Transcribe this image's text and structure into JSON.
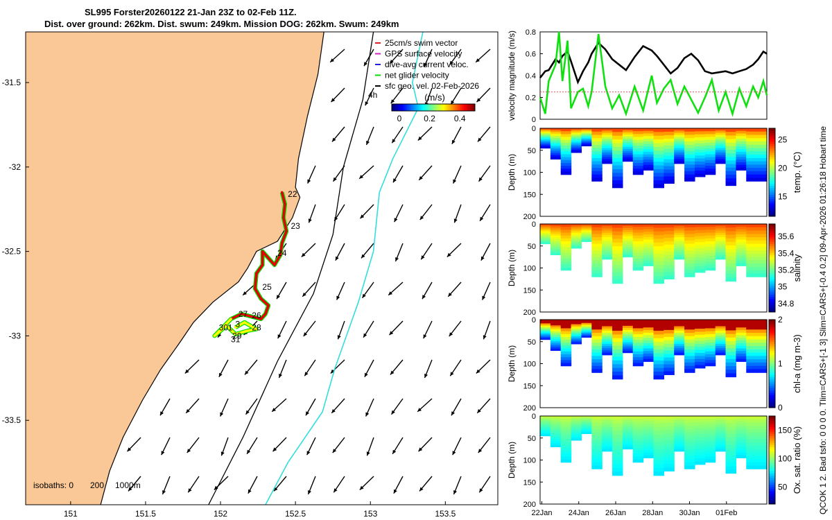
{
  "title": {
    "line1": "SL995 Forster20260122 21-Jan 23Z to 02-Feb 11Z.",
    "line2": "Dist. over ground: 262km. Dist. swum: 249km. Mission DOG: 262km. Swum: 249km"
  },
  "side_caption": "QCOK 1  2. Bad tsfo: 0  0  0  0. Tlim=CARS+[-1 3] Slim=CARS+[-0.4 0.2] 09-Apr-2026 01:26:18 Hobart time",
  "colors": {
    "land": "#FAC896",
    "coast": "#000000",
    "isobath200": "#000000",
    "isobath1000": "#33DDDD",
    "glider": "#00E000",
    "gps": "#D020D0",
    "swim": "#E02020",
    "dive": "#2020E0"
  },
  "chart_data": [
    {
      "id": "map",
      "type": "map",
      "x_ticks": [
        151,
        151.5,
        152,
        152.5,
        153,
        153.5
      ],
      "y_ticks": [
        -31.5,
        -32,
        -32.5,
        -33,
        -33.5
      ],
      "xlim": [
        150.7,
        153.85
      ],
      "ylim": [
        -34.0,
        -31.2
      ],
      "legend": [
        {
          "label": "25cm/s swim vector",
          "color": "#E02020"
        },
        {
          "label": "GPS surface velocity",
          "color": "#D020D0"
        },
        {
          "label": "dive-avg current veloc.",
          "color": "#2020E0"
        },
        {
          "label": "net glider velocity",
          "color": "#00E000"
        },
        {
          "label": "sfc geo. vel. 02-Feb-2026",
          "color": "#000000"
        }
      ],
      "time_note": "4h",
      "colorbar": {
        "label": "(m/s)",
        "ticks": [
          "0",
          "0.2",
          "0.4"
        ],
        "range": [
          -0.05,
          0.5
        ]
      },
      "isobaths_label": "isobaths: 0",
      "isobath_values": [
        "200",
        "1000m"
      ],
      "track": [
        {
          "lon": 152.41,
          "lat": -32.15
        },
        {
          "lon": 152.43,
          "lat": -32.22
        },
        {
          "lon": 152.42,
          "lat": -32.3
        },
        {
          "lon": 152.44,
          "lat": -32.38
        },
        {
          "lon": 152.41,
          "lat": -32.45
        },
        {
          "lon": 152.4,
          "lat": -32.52
        },
        {
          "lon": 152.36,
          "lat": -32.58
        },
        {
          "lon": 152.28,
          "lat": -32.5
        },
        {
          "lon": 152.28,
          "lat": -32.58
        },
        {
          "lon": 152.24,
          "lat": -32.63
        },
        {
          "lon": 152.23,
          "lat": -32.72
        },
        {
          "lon": 152.27,
          "lat": -32.78
        },
        {
          "lon": 152.32,
          "lat": -32.82
        },
        {
          "lon": 152.3,
          "lat": -32.87
        },
        {
          "lon": 152.27,
          "lat": -32.9
        },
        {
          "lon": 152.14,
          "lat": -32.87
        },
        {
          "lon": 152.07,
          "lat": -32.9
        },
        {
          "lon": 151.96,
          "lat": -33.0
        },
        {
          "lon": 152.04,
          "lat": -32.94
        },
        {
          "lon": 152.1,
          "lat": -32.99
        },
        {
          "lon": 152.18,
          "lat": -32.97
        },
        {
          "lon": 152.24,
          "lat": -32.96
        },
        {
          "lon": 152.16,
          "lat": -32.92
        },
        {
          "lon": 152.1,
          "lat": -32.95
        }
      ],
      "day_labels": [
        {
          "text": "22",
          "lon": 152.44,
          "lat": -32.16
        },
        {
          "text": "23",
          "lon": 152.46,
          "lat": -32.35
        },
        {
          "text": "24",
          "lon": 152.37,
          "lat": -32.51
        },
        {
          "text": "25",
          "lon": 152.27,
          "lat": -32.71
        },
        {
          "text": "26",
          "lon": 152.2,
          "lat": -32.88
        },
        {
          "text": "27",
          "lon": 152.11,
          "lat": -32.87
        },
        {
          "text": "28",
          "lon": 152.2,
          "lat": -32.95
        },
        {
          "text": "29",
          "lon": 152.07,
          "lat": -33.0
        },
        {
          "text": "30",
          "lon": 151.98,
          "lat": -32.95
        },
        {
          "text": "31",
          "lon": 152.06,
          "lat": -33.02
        },
        {
          "text": "1",
          "lon": 152.04,
          "lat": -32.95
        },
        {
          "text": "3",
          "lon": 152.09,
          "lat": -32.93
        }
      ],
      "coastline": [
        {
          "lon": 152.69,
          "lat": -31.2
        },
        {
          "lon": 152.65,
          "lat": -31.45
        },
        {
          "lon": 152.58,
          "lat": -31.7
        },
        {
          "lon": 152.52,
          "lat": -31.95
        },
        {
          "lon": 152.5,
          "lat": -32.12
        },
        {
          "lon": 152.53,
          "lat": -32.18
        },
        {
          "lon": 152.48,
          "lat": -32.3
        },
        {
          "lon": 152.38,
          "lat": -32.44
        },
        {
          "lon": 152.24,
          "lat": -32.5
        },
        {
          "lon": 152.18,
          "lat": -32.6
        },
        {
          "lon": 152.12,
          "lat": -32.68
        },
        {
          "lon": 151.95,
          "lat": -32.8
        },
        {
          "lon": 151.82,
          "lat": -32.92
        },
        {
          "lon": 151.72,
          "lat": -33.05
        },
        {
          "lon": 151.6,
          "lat": -33.2
        },
        {
          "lon": 151.48,
          "lat": -33.38
        },
        {
          "lon": 151.35,
          "lat": -33.6
        },
        {
          "lon": 151.26,
          "lat": -33.8
        },
        {
          "lon": 151.2,
          "lat": -34.0
        }
      ],
      "isobath_200": [
        {
          "lon": 153.02,
          "lat": -31.2
        },
        {
          "lon": 152.95,
          "lat": -31.6
        },
        {
          "lon": 152.82,
          "lat": -32.0
        },
        {
          "lon": 152.75,
          "lat": -32.4
        },
        {
          "lon": 152.62,
          "lat": -32.75
        },
        {
          "lon": 152.38,
          "lat": -33.15
        },
        {
          "lon": 152.15,
          "lat": -33.6
        },
        {
          "lon": 151.92,
          "lat": -34.0
        }
      ],
      "isobath_1000": [
        {
          "lon": 153.35,
          "lat": -31.2
        },
        {
          "lon": 153.28,
          "lat": -31.5
        },
        {
          "lon": 153.32,
          "lat": -31.65
        },
        {
          "lon": 153.15,
          "lat": -31.95
        },
        {
          "lon": 153.06,
          "lat": -32.15
        },
        {
          "lon": 153.02,
          "lat": -32.5
        },
        {
          "lon": 152.92,
          "lat": -32.8
        },
        {
          "lon": 152.76,
          "lat": -33.2
        },
        {
          "lon": 152.68,
          "lat": -33.45
        },
        {
          "lon": 152.45,
          "lat": -33.75
        },
        {
          "lon": 152.3,
          "lat": -34.0
        }
      ]
    },
    {
      "id": "velocity",
      "type": "line",
      "ylabel": "velocity magnitude (m/s)",
      "ylim": [
        0,
        0.8
      ],
      "y_ticks": [
        0,
        0.2,
        0.4,
        0.6,
        0.8
      ],
      "x": [
        0,
        0.3,
        0.5,
        0.9,
        1.1,
        1.3,
        1.6,
        1.8,
        2.2,
        2.5,
        2.8,
        3.0,
        3.4,
        3.8,
        4.2,
        4.6,
        5.0,
        5.5,
        6.0,
        6.5,
        6.8,
        7.2,
        7.6,
        8.0,
        8.4,
        8.8,
        9.2,
        9.6,
        10.0,
        10.4,
        10.8,
        11.2,
        11.6,
        12.0,
        12.4,
        12.7,
        13.0,
        13.2
      ],
      "series": [
        {
          "name": "black",
          "color": "#000000",
          "values": [
            0.38,
            0.44,
            0.45,
            0.55,
            0.52,
            0.58,
            0.62,
            0.53,
            0.34,
            0.44,
            0.52,
            0.6,
            0.7,
            0.64,
            0.55,
            0.5,
            0.45,
            0.57,
            0.67,
            0.63,
            0.58,
            0.5,
            0.42,
            0.47,
            0.56,
            0.6,
            0.54,
            0.44,
            0.42,
            0.43,
            0.44,
            0.42,
            0.44,
            0.46,
            0.5,
            0.55,
            0.62,
            0.6
          ]
        },
        {
          "name": "green",
          "color": "#10E010",
          "values": [
            0.2,
            0.05,
            0.35,
            0.5,
            0.8,
            0.35,
            0.72,
            0.1,
            0.25,
            0.28,
            0.12,
            0.25,
            0.78,
            0.3,
            0.1,
            0.22,
            0.05,
            0.3,
            0.08,
            0.4,
            0.15,
            0.28,
            0.36,
            0.14,
            0.3,
            0.18,
            0.06,
            0.2,
            0.36,
            0.08,
            0.25,
            0.05,
            0.28,
            0.12,
            0.3,
            0.2,
            0.35,
            0.22
          ]
        },
        {
          "name": "red",
          "color": "#E05050",
          "values": [
            0.25,
            0.25,
            0.25,
            0.25,
            0.25,
            0.25,
            0.25,
            0.25,
            0.25,
            0.25,
            0.25,
            0.25,
            0.25,
            0.25,
            0.25,
            0.25,
            0.25,
            0.25,
            0.25,
            0.25,
            0.25,
            0.25,
            0.25,
            0.25,
            0.25,
            0.25,
            0.25,
            0.25,
            0.25,
            0.25,
            0.25,
            0.25,
            0.25,
            0.25,
            0.25,
            0.25,
            0.25,
            0.25
          ]
        }
      ]
    },
    {
      "id": "temperature",
      "type": "heatmap",
      "ylabel": "Depth (m)",
      "clabel": "temp. (°C)",
      "y_ticks": [
        0,
        50,
        100,
        150,
        200
      ],
      "cbar_ticks": [
        15,
        20,
        25
      ],
      "crange": [
        11.5,
        27
      ],
      "surface_value": 24,
      "deep_value": 13,
      "bottom_depth": [
        45,
        70,
        105,
        55,
        40,
        120,
        80,
        135,
        75,
        105,
        95,
        135,
        125,
        80,
        120,
        110,
        105,
        80,
        130,
        95,
        120,
        120
      ]
    },
    {
      "id": "salinity",
      "type": "heatmap",
      "ylabel": "Depth (m)",
      "clabel": "salinity",
      "y_ticks": [
        0,
        50,
        100,
        150,
        200
      ],
      "cbar_ticks": [
        34.8,
        35,
        35.2,
        35.4,
        35.6
      ],
      "crange": [
        34.7,
        35.75
      ],
      "surface_value": 35.55,
      "deep_value": 35.15,
      "bottom_depth": [
        45,
        70,
        105,
        55,
        40,
        120,
        80,
        135,
        75,
        105,
        95,
        135,
        125,
        80,
        120,
        110,
        105,
        80,
        130,
        95,
        120,
        120
      ]
    },
    {
      "id": "chlorophyll",
      "type": "heatmap",
      "ylabel": "Depth (m)",
      "clabel": "chl-a (mg m-3)",
      "y_ticks": [
        0,
        50,
        100,
        150,
        200
      ],
      "cbar_ticks": [
        0,
        1,
        2
      ],
      "crange": [
        0,
        2
      ],
      "surface_value": 1.9,
      "deep_value": 0.3,
      "bottom_depth": [
        45,
        70,
        105,
        55,
        40,
        120,
        80,
        135,
        75,
        105,
        95,
        135,
        125,
        80,
        120,
        110,
        105,
        80,
        130,
        95,
        120,
        120
      ]
    },
    {
      "id": "oxygen",
      "type": "heatmap",
      "ylabel": "Depth (m)",
      "clabel": "Ox. sat. ratio (%)",
      "y_ticks": [
        0,
        50,
        100,
        150,
        200
      ],
      "cbar_ticks": [
        50,
        100,
        150
      ],
      "crange": [
        20,
        175
      ],
      "surface_value": 108,
      "deep_value": 75,
      "bottom_depth": [
        45,
        70,
        105,
        55,
        40,
        120,
        80,
        135,
        75,
        105,
        95,
        135,
        125,
        80,
        120,
        110,
        105,
        80,
        130,
        95,
        120,
        120
      ],
      "x_tick_labels": [
        "22Jan",
        "24Jan",
        "26Jan",
        "28Jan",
        "30Jan",
        "01Feb"
      ]
    }
  ]
}
